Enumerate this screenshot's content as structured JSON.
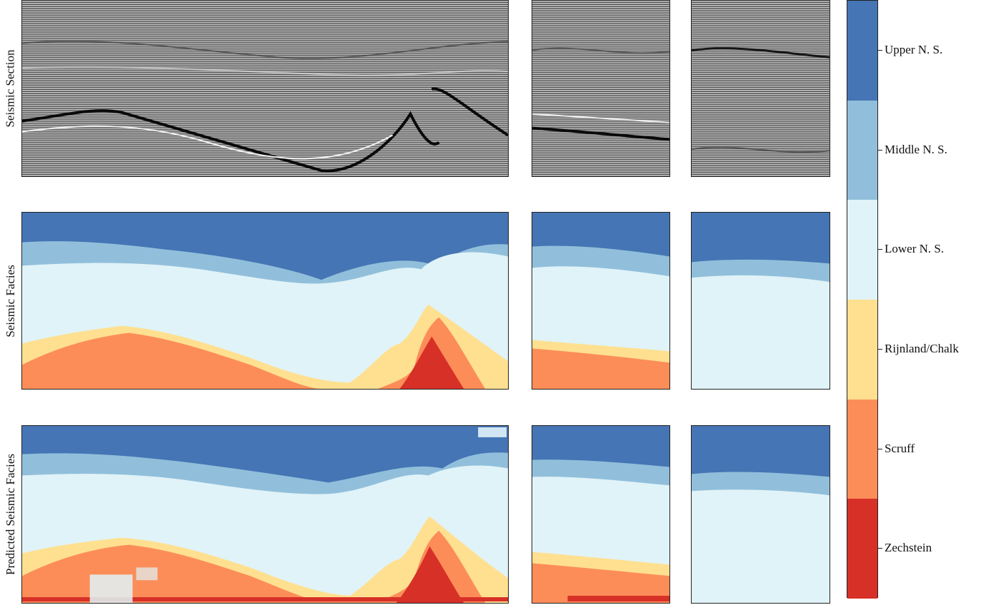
{
  "row_labels": {
    "seismic": "Seismic Section",
    "facies": "Seismic Facies",
    "predicted": "Predicted Seismic Facies"
  },
  "colorbar": {
    "classes": [
      {
        "label": "Upper N. S.",
        "color": "#4575b4"
      },
      {
        "label": "Middle N. S.",
        "color": "#91bfdb"
      },
      {
        "label": "Lower N. S.",
        "color": "#e0f3f8"
      },
      {
        "label": "Rijnland/Chalk",
        "color": "#fee090"
      },
      {
        "label": "Scruff",
        "color": "#fc8d59"
      },
      {
        "label": "Zechstein",
        "color": "#d73027"
      }
    ]
  }
}
